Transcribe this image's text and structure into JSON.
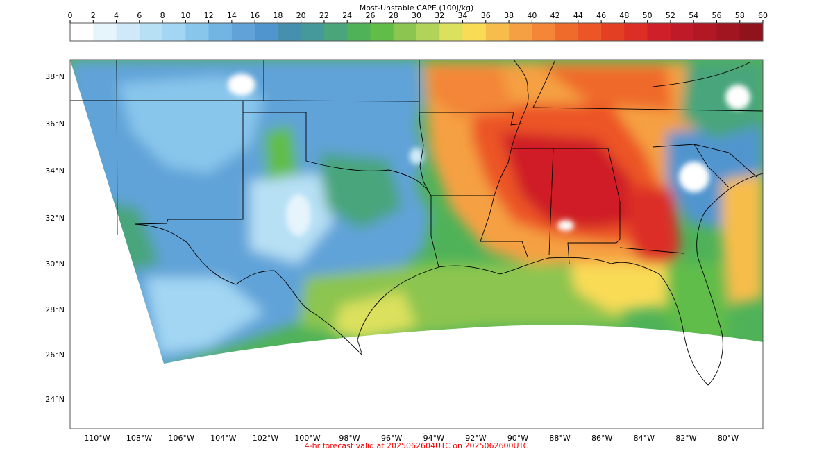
{
  "colorbar": {
    "title": "Most-Unstable CAPE (100J/kg)",
    "ticks": [
      "0",
      "2",
      "4",
      "6",
      "8",
      "10",
      "12",
      "14",
      "16",
      "18",
      "20",
      "22",
      "24",
      "26",
      "28",
      "30",
      "32",
      "34",
      "36",
      "38",
      "40",
      "42",
      "44",
      "46",
      "48",
      "50",
      "52",
      "54",
      "56",
      "58",
      "60"
    ],
    "colors": [
      "#ffffff",
      "#e6f4fc",
      "#cfe9f8",
      "#b7e0f5",
      "#a2d6f3",
      "#88c6ec",
      "#72b4e2",
      "#61a3d8",
      "#5195cf",
      "#478fae",
      "#46999a",
      "#4aa57b",
      "#4fb258",
      "#61bd48",
      "#8cc54f",
      "#b1d35a",
      "#dbe05d",
      "#f9db56",
      "#f7bd4c",
      "#f5a043",
      "#f38637",
      "#ef6b2b",
      "#ec5525",
      "#e33f22",
      "#dc2e25",
      "#cf1f28",
      "#bf1a27",
      "#b11824",
      "#a01520",
      "#90131c"
    ]
  },
  "map": {
    "lat_labels": [
      "38°N",
      "36°N",
      "34°N",
      "32°N",
      "30°N",
      "28°N",
      "26°N",
      "24°N"
    ],
    "lon_labels": [
      "110°W",
      "108°W",
      "106°W",
      "104°W",
      "102°W",
      "100°W",
      "98°W",
      "96°W",
      "94°W",
      "92°W",
      "90°W",
      "88°W",
      "86°W",
      "84°W",
      "82°W",
      "80°W"
    ]
  },
  "footer": {
    "text": "4-hr forecast valid at 2025062604UTC on 2025062600UTC",
    "color": "#ff0000"
  }
}
